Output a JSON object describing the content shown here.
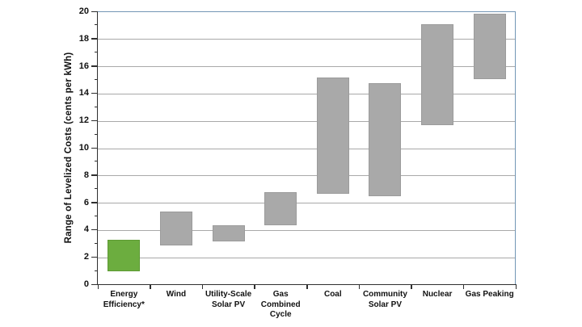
{
  "chart_data": {
    "type": "bar",
    "subtype": "floating-range-columns",
    "title": "",
    "xlabel": "",
    "ylabel": "Range of Levelized Costs (cents per kWh)",
    "ylim": [
      0,
      20
    ],
    "ytick_step": 2,
    "ytick_minor_step": 1,
    "grid": true,
    "legend": "none",
    "categories": [
      "Energy\nEfficiency*",
      "Wind",
      "Utility-Scale\nSolar PV",
      "Gas\nCombined\nCycle",
      "Coal",
      "Community\nSolar PV",
      "Nuclear",
      "Gas Peaking"
    ],
    "series": [
      {
        "name": "Levelized cost range (cents per kWh)",
        "ranges": [
          [
            1.0,
            3.3
          ],
          [
            2.9,
            5.4
          ],
          [
            3.2,
            4.4
          ],
          [
            4.4,
            6.8
          ],
          [
            6.7,
            15.2
          ],
          [
            6.5,
            14.8
          ],
          [
            11.7,
            19.1
          ],
          [
            15.1,
            19.9
          ]
        ]
      }
    ],
    "bar_colors": [
      "#6CAD3F",
      "#A9A9A9",
      "#A9A9A9",
      "#A9A9A9",
      "#A9A9A9",
      "#A9A9A9",
      "#A9A9A9",
      "#A9A9A9"
    ],
    "bar_border_colors": [
      "#5D9A33",
      "#9B9B9B",
      "#9B9B9B",
      "#9B9B9B",
      "#9B9B9B",
      "#9B9B9B",
      "#9B9B9B",
      "#9B9B9B"
    ],
    "colors": {
      "highlight_green": "#6CAD3F",
      "range_gray": "#A9A9A9",
      "plot_frame_blue": "#7396B5",
      "axis_dark": "#2F2F2F",
      "gridline_gray": "#A9A9A9",
      "background": "#FFFFFF"
    }
  }
}
